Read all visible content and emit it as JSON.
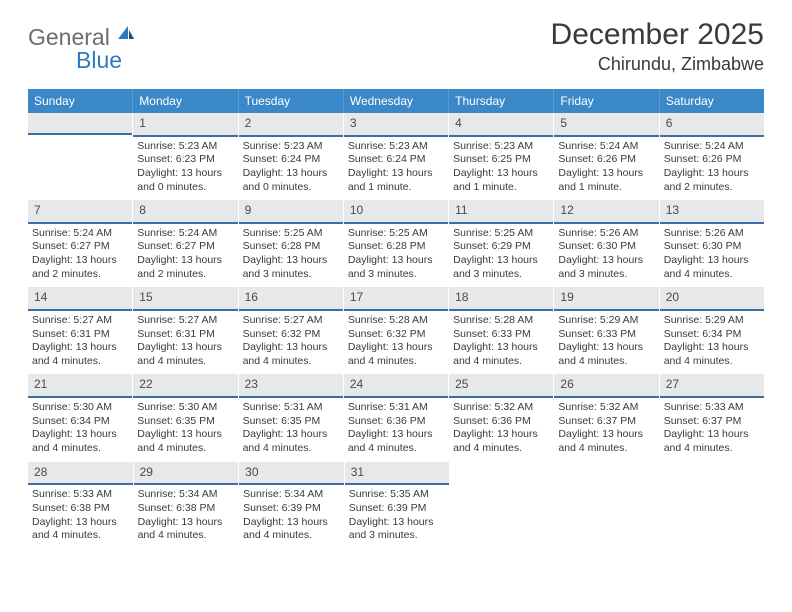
{
  "logo": {
    "general": "General",
    "blue": "Blue"
  },
  "title": "December 2025",
  "location": "Chirundu, Zimbabwe",
  "weekdays": [
    "Sunday",
    "Monday",
    "Tuesday",
    "Wednesday",
    "Thursday",
    "Friday",
    "Saturday"
  ],
  "colors": {
    "header_bg": "#3b88c9",
    "daynum_bg": "#e7e8e9",
    "daynum_border": "#3b6fa3",
    "logo_gray": "#6d6d6d",
    "logo_blue": "#2f7abf"
  },
  "weeks": [
    [
      {
        "empty": true
      },
      {
        "num": "1",
        "sunrise": "Sunrise: 5:23 AM",
        "sunset": "Sunset: 6:23 PM",
        "daylight1": "Daylight: 13 hours",
        "daylight2": "and 0 minutes."
      },
      {
        "num": "2",
        "sunrise": "Sunrise: 5:23 AM",
        "sunset": "Sunset: 6:24 PM",
        "daylight1": "Daylight: 13 hours",
        "daylight2": "and 0 minutes."
      },
      {
        "num": "3",
        "sunrise": "Sunrise: 5:23 AM",
        "sunset": "Sunset: 6:24 PM",
        "daylight1": "Daylight: 13 hours",
        "daylight2": "and 1 minute."
      },
      {
        "num": "4",
        "sunrise": "Sunrise: 5:23 AM",
        "sunset": "Sunset: 6:25 PM",
        "daylight1": "Daylight: 13 hours",
        "daylight2": "and 1 minute."
      },
      {
        "num": "5",
        "sunrise": "Sunrise: 5:24 AM",
        "sunset": "Sunset: 6:26 PM",
        "daylight1": "Daylight: 13 hours",
        "daylight2": "and 1 minute."
      },
      {
        "num": "6",
        "sunrise": "Sunrise: 5:24 AM",
        "sunset": "Sunset: 6:26 PM",
        "daylight1": "Daylight: 13 hours",
        "daylight2": "and 2 minutes."
      }
    ],
    [
      {
        "num": "7",
        "sunrise": "Sunrise: 5:24 AM",
        "sunset": "Sunset: 6:27 PM",
        "daylight1": "Daylight: 13 hours",
        "daylight2": "and 2 minutes."
      },
      {
        "num": "8",
        "sunrise": "Sunrise: 5:24 AM",
        "sunset": "Sunset: 6:27 PM",
        "daylight1": "Daylight: 13 hours",
        "daylight2": "and 2 minutes."
      },
      {
        "num": "9",
        "sunrise": "Sunrise: 5:25 AM",
        "sunset": "Sunset: 6:28 PM",
        "daylight1": "Daylight: 13 hours",
        "daylight2": "and 3 minutes."
      },
      {
        "num": "10",
        "sunrise": "Sunrise: 5:25 AM",
        "sunset": "Sunset: 6:28 PM",
        "daylight1": "Daylight: 13 hours",
        "daylight2": "and 3 minutes."
      },
      {
        "num": "11",
        "sunrise": "Sunrise: 5:25 AM",
        "sunset": "Sunset: 6:29 PM",
        "daylight1": "Daylight: 13 hours",
        "daylight2": "and 3 minutes."
      },
      {
        "num": "12",
        "sunrise": "Sunrise: 5:26 AM",
        "sunset": "Sunset: 6:30 PM",
        "daylight1": "Daylight: 13 hours",
        "daylight2": "and 3 minutes."
      },
      {
        "num": "13",
        "sunrise": "Sunrise: 5:26 AM",
        "sunset": "Sunset: 6:30 PM",
        "daylight1": "Daylight: 13 hours",
        "daylight2": "and 4 minutes."
      }
    ],
    [
      {
        "num": "14",
        "sunrise": "Sunrise: 5:27 AM",
        "sunset": "Sunset: 6:31 PM",
        "daylight1": "Daylight: 13 hours",
        "daylight2": "and 4 minutes."
      },
      {
        "num": "15",
        "sunrise": "Sunrise: 5:27 AM",
        "sunset": "Sunset: 6:31 PM",
        "daylight1": "Daylight: 13 hours",
        "daylight2": "and 4 minutes."
      },
      {
        "num": "16",
        "sunrise": "Sunrise: 5:27 AM",
        "sunset": "Sunset: 6:32 PM",
        "daylight1": "Daylight: 13 hours",
        "daylight2": "and 4 minutes."
      },
      {
        "num": "17",
        "sunrise": "Sunrise: 5:28 AM",
        "sunset": "Sunset: 6:32 PM",
        "daylight1": "Daylight: 13 hours",
        "daylight2": "and 4 minutes."
      },
      {
        "num": "18",
        "sunrise": "Sunrise: 5:28 AM",
        "sunset": "Sunset: 6:33 PM",
        "daylight1": "Daylight: 13 hours",
        "daylight2": "and 4 minutes."
      },
      {
        "num": "19",
        "sunrise": "Sunrise: 5:29 AM",
        "sunset": "Sunset: 6:33 PM",
        "daylight1": "Daylight: 13 hours",
        "daylight2": "and 4 minutes."
      },
      {
        "num": "20",
        "sunrise": "Sunrise: 5:29 AM",
        "sunset": "Sunset: 6:34 PM",
        "daylight1": "Daylight: 13 hours",
        "daylight2": "and 4 minutes."
      }
    ],
    [
      {
        "num": "21",
        "sunrise": "Sunrise: 5:30 AM",
        "sunset": "Sunset: 6:34 PM",
        "daylight1": "Daylight: 13 hours",
        "daylight2": "and 4 minutes."
      },
      {
        "num": "22",
        "sunrise": "Sunrise: 5:30 AM",
        "sunset": "Sunset: 6:35 PM",
        "daylight1": "Daylight: 13 hours",
        "daylight2": "and 4 minutes."
      },
      {
        "num": "23",
        "sunrise": "Sunrise: 5:31 AM",
        "sunset": "Sunset: 6:35 PM",
        "daylight1": "Daylight: 13 hours",
        "daylight2": "and 4 minutes."
      },
      {
        "num": "24",
        "sunrise": "Sunrise: 5:31 AM",
        "sunset": "Sunset: 6:36 PM",
        "daylight1": "Daylight: 13 hours",
        "daylight2": "and 4 minutes."
      },
      {
        "num": "25",
        "sunrise": "Sunrise: 5:32 AM",
        "sunset": "Sunset: 6:36 PM",
        "daylight1": "Daylight: 13 hours",
        "daylight2": "and 4 minutes."
      },
      {
        "num": "26",
        "sunrise": "Sunrise: 5:32 AM",
        "sunset": "Sunset: 6:37 PM",
        "daylight1": "Daylight: 13 hours",
        "daylight2": "and 4 minutes."
      },
      {
        "num": "27",
        "sunrise": "Sunrise: 5:33 AM",
        "sunset": "Sunset: 6:37 PM",
        "daylight1": "Daylight: 13 hours",
        "daylight2": "and 4 minutes."
      }
    ],
    [
      {
        "num": "28",
        "sunrise": "Sunrise: 5:33 AM",
        "sunset": "Sunset: 6:38 PM",
        "daylight1": "Daylight: 13 hours",
        "daylight2": "and 4 minutes."
      },
      {
        "num": "29",
        "sunrise": "Sunrise: 5:34 AM",
        "sunset": "Sunset: 6:38 PM",
        "daylight1": "Daylight: 13 hours",
        "daylight2": "and 4 minutes."
      },
      {
        "num": "30",
        "sunrise": "Sunrise: 5:34 AM",
        "sunset": "Sunset: 6:39 PM",
        "daylight1": "Daylight: 13 hours",
        "daylight2": "and 4 minutes."
      },
      {
        "num": "31",
        "sunrise": "Sunrise: 5:35 AM",
        "sunset": "Sunset: 6:39 PM",
        "daylight1": "Daylight: 13 hours",
        "daylight2": "and 3 minutes."
      },
      {
        "blank": true
      },
      {
        "blank": true
      },
      {
        "blank": true
      }
    ]
  ]
}
